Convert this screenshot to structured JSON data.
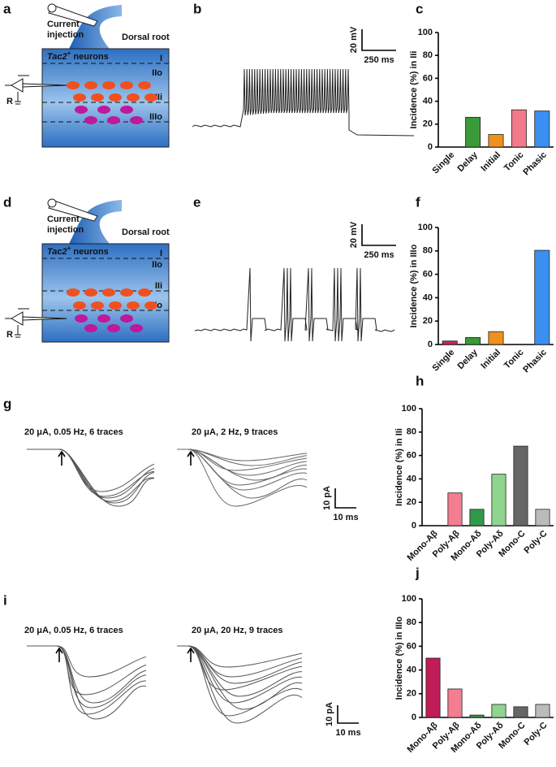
{
  "panel_labels": [
    "a",
    "b",
    "c",
    "d",
    "e",
    "f",
    "g",
    "h",
    "i",
    "j"
  ],
  "diagrams": [
    {
      "injection": [
        "Current",
        "injection"
      ],
      "root": "Dorsal root",
      "neurons": {
        "name": "Tac2",
        "sup": "+",
        "text": " neurons"
      },
      "layers": [
        "I",
        "IIo",
        "IIi",
        "IIIo"
      ],
      "recording": "R"
    },
    {
      "injection": [
        "Current",
        "injection"
      ],
      "root": "Dorsal root",
      "neurons": {
        "name": "Tac2",
        "sup": "+",
        "text": " neurons"
      },
      "layers": [
        "I",
        "IIo",
        "IIi",
        "IIIo"
      ],
      "recording": "R"
    }
  ],
  "traces": [
    {
      "scale": [
        "20 mV",
        "250 ms"
      ]
    },
    {
      "scale": [
        "20 mV",
        "250 ms"
      ]
    },
    {
      "conditions": [
        "20 μA, 0.05 Hz, 6 traces",
        "20 μA, 2 Hz, 9 traces"
      ],
      "scale": [
        "10 pA",
        "10 ms"
      ]
    },
    {
      "conditions": [
        "20 μA, 0.05 Hz, 6 traces",
        "20 μA, 20 Hz, 9 traces"
      ],
      "scale": [
        "10 pA",
        "10 ms"
      ]
    }
  ],
  "chart_data": [
    {
      "type": "bar",
      "y_label": "Incidence (%) in IIi",
      "categories": [
        "Single",
        "Delay",
        "Initial",
        "Tonic",
        "Phasic"
      ],
      "values": [
        0,
        26,
        11,
        32.5,
        31.5
      ],
      "colors": [
        "#c8285a",
        "#3a9a3a",
        "#f0901e",
        "#f27a8a",
        "#3b8ff0"
      ],
      "ylim": [
        0,
        100
      ],
      "yticks": [
        0,
        20,
        40,
        60,
        80,
        100
      ]
    },
    {
      "type": "bar",
      "y_label": "Incidence (%) in IIIo",
      "categories": [
        "Single",
        "Delay",
        "Initial",
        "Tonic",
        "Phasic"
      ],
      "values": [
        3,
        6,
        11,
        0,
        80.5
      ],
      "colors": [
        "#c8285a",
        "#3a9a3a",
        "#f0901e",
        "#f27a8a",
        "#3b8ff0"
      ],
      "ylim": [
        0,
        100
      ],
      "yticks": [
        0,
        20,
        40,
        60,
        80,
        100
      ]
    },
    {
      "type": "bar",
      "y_label": "Incidence (%) in IIi",
      "categories": [
        "Mono-Aβ",
        "Poly-Aβ",
        "Mono-Aδ",
        "Poly-Aδ",
        "Mono-C",
        "Poly-C"
      ],
      "values": [
        0,
        28,
        14,
        44,
        68,
        14
      ],
      "colors": [
        "#c01d58",
        "#f27e8f",
        "#2f9a4a",
        "#8fd48f",
        "#666666",
        "#bbbbbb"
      ],
      "ylim": [
        0,
        100
      ],
      "yticks": [
        0,
        20,
        40,
        60,
        80,
        100
      ]
    },
    {
      "type": "bar",
      "y_label": "Incidence (%) in IIIo",
      "categories": [
        "Mono-Aβ",
        "Poly-Aβ",
        "Mono-Aδ",
        "Poly-Aδ",
        "Mono-C",
        "Poly-C"
      ],
      "values": [
        50,
        24,
        2,
        11,
        9,
        11
      ],
      "colors": [
        "#c01d58",
        "#f27e8f",
        "#2f9a4a",
        "#8fd48f",
        "#666666",
        "#bbbbbb"
      ],
      "ylim": [
        0,
        100
      ],
      "yticks": [
        0,
        20,
        40,
        60,
        80,
        100
      ]
    }
  ]
}
